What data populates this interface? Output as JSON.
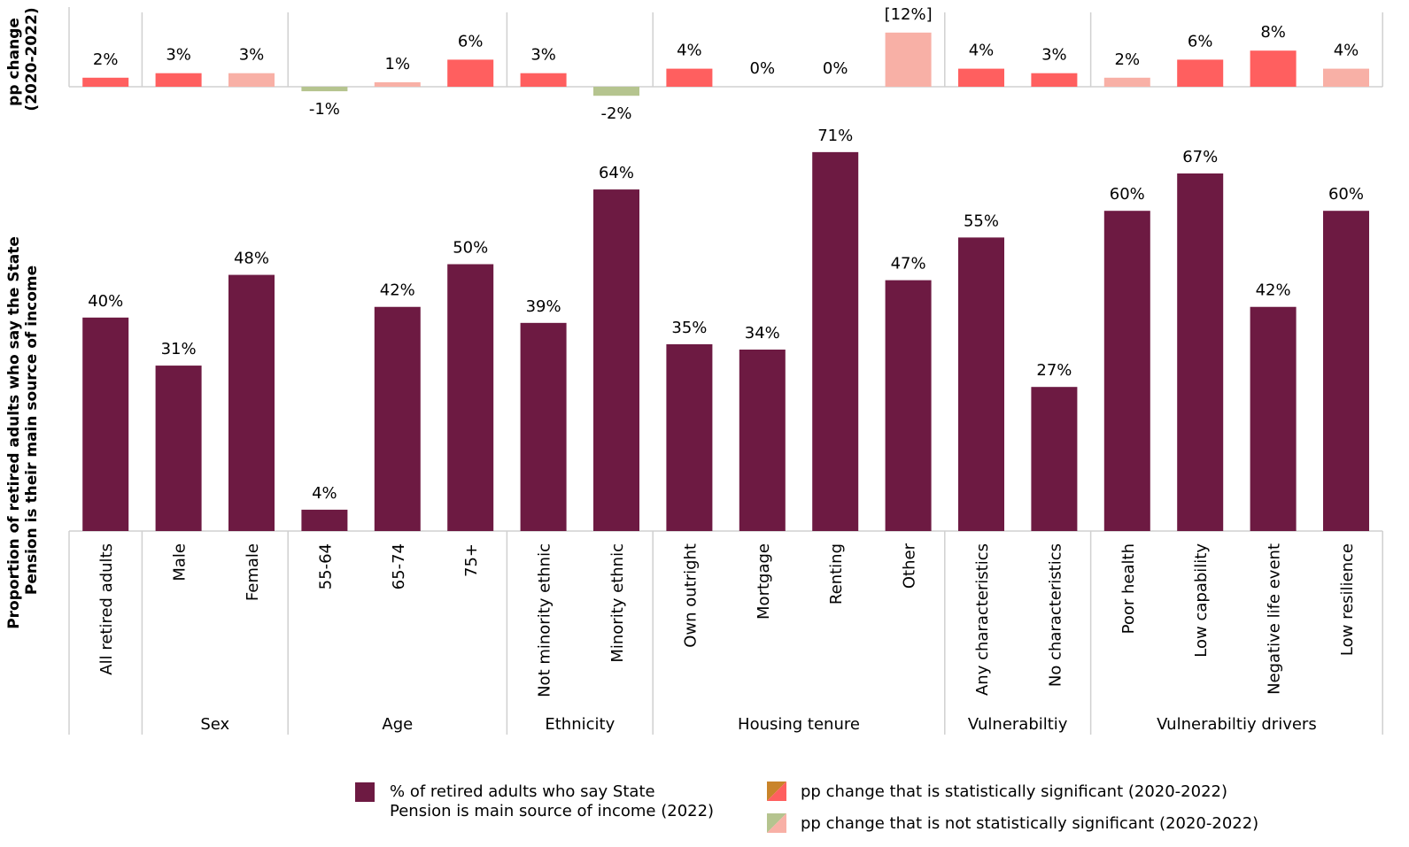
{
  "chart_data": {
    "type": "bar",
    "top_axis_label_lines": [
      "pp change",
      "(2020-2022)"
    ],
    "main_axis_label_lines": [
      "Proportion of retired adults who say the State",
      "Pension is their main source of income"
    ],
    "categories": [
      "All retired adults",
      "Male",
      "Female",
      "55-64",
      "65-74",
      "75+",
      "Not minority ethnic",
      "Minority ethnic",
      "Own outright",
      "Mortgage",
      "Renting",
      "Other",
      "Any characteristics",
      "No characteristics",
      "Poor health",
      "Low capability",
      "Negative life event",
      "Low resilience"
    ],
    "groups": [
      {
        "name": "",
        "count": 1
      },
      {
        "name": "Sex",
        "count": 2
      },
      {
        "name": "Age",
        "count": 3
      },
      {
        "name": "Ethnicity",
        "count": 2
      },
      {
        "name": "Housing tenure",
        "count": 4
      },
      {
        "name": "Vulnerabiltiy",
        "count": 2
      },
      {
        "name": "Vulnerabiltiy drivers",
        "count": 4
      }
    ],
    "series": [
      {
        "name": "% of retired adults who say State Pension is main source of income (2022)",
        "values": [
          40,
          31,
          48,
          4,
          42,
          50,
          39,
          64,
          35,
          34,
          71,
          47,
          55,
          27,
          60,
          67,
          42,
          60
        ],
        "labels": [
          "40%",
          "31%",
          "48%",
          "4%",
          "42%",
          "50%",
          "39%",
          "64%",
          "35%",
          "34%",
          "71%",
          "47%",
          "55%",
          "27%",
          "60%",
          "67%",
          "42%",
          "60%"
        ],
        "color": "#6d1a42"
      },
      {
        "name": "pp change (2020-2022)",
        "values": [
          2,
          3,
          3,
          -1,
          1,
          6,
          3,
          -2,
          4,
          0,
          0,
          12,
          4,
          3,
          2,
          6,
          8,
          4
        ],
        "labels": [
          "2%",
          "3%",
          "3%",
          "-1%",
          "1%",
          "6%",
          "3%",
          "-2%",
          "4%",
          "0%",
          "0%",
          "[12%]",
          "4%",
          "3%",
          "2%",
          "6%",
          "8%",
          "4%"
        ],
        "significant": [
          true,
          true,
          false,
          false,
          false,
          true,
          true,
          false,
          true,
          false,
          false,
          false,
          true,
          true,
          false,
          true,
          true,
          false
        ]
      }
    ],
    "ylim_main": [
      0,
      75
    ],
    "ylim_change": [
      -2,
      12
    ],
    "colors": {
      "significant_increase": "#ff5f5f",
      "not_significant_increase": "#f8b0a6",
      "not_significant_decrease": "#b5c48f",
      "significant_decrease": "#c9842a"
    },
    "legend": {
      "main_lines": [
        "% of retired adults who say State",
        "Pension is main source of income (2022)"
      ],
      "significant": "pp change that is statistically significant (2020-2022)",
      "not_significant": "pp change that is not statistically significant (2020-2022)",
      "position": "bottom"
    }
  }
}
